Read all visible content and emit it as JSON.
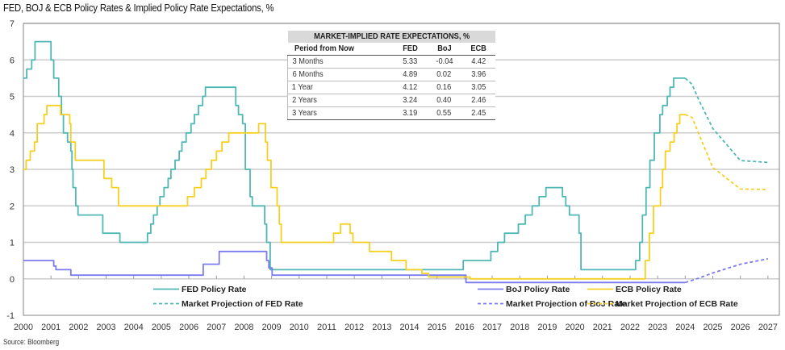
{
  "title": "FED, BOJ & ECB Policy Rates & Implied Policy Rate Expectations, %",
  "source": "Source: Bloomberg",
  "colors": {
    "fed": "#4fb8b4",
    "boj": "#7b7bf0",
    "ecb": "#f5d020",
    "grid": "#cccccc",
    "axis": "#999999",
    "table_header_bg": "#d9d9d9"
  },
  "table": {
    "title": "MARKET-IMPLIED RATE EXPECTATIONS, %",
    "columns": [
      "Period from Now",
      "FED",
      "BoJ",
      "ECB"
    ],
    "rows": [
      [
        "3 Months",
        "5.33",
        "-0.04",
        "4.42"
      ],
      [
        "6 Months",
        "4.89",
        "0.02",
        "3.96"
      ],
      [
        "1 Year",
        "4.12",
        "0.16",
        "3.05"
      ],
      [
        "2 Years",
        "3.24",
        "0.40",
        "2.46"
      ],
      [
        "3 Years",
        "3.19",
        "0.55",
        "2.45"
      ]
    ]
  },
  "chart_data": {
    "type": "line",
    "title": "FED, BOJ & ECB Policy Rates & Implied Policy Rate Expectations, %",
    "xlabel": "",
    "ylabel": "%",
    "xlim": [
      2000,
      2027.4
    ],
    "ylim": [
      -1,
      7
    ],
    "grid": true,
    "legend_position": "bottom-center",
    "x_ticks": [
      "2000",
      "2001",
      "2002",
      "2003",
      "2004",
      "2005",
      "2006",
      "2007",
      "2008",
      "2009",
      "2010",
      "2011",
      "2012",
      "2013",
      "2014",
      "2015",
      "2016",
      "2017",
      "2018",
      "2019",
      "2020",
      "2021",
      "2022",
      "2023",
      "2024",
      "2025",
      "2026",
      "2027"
    ],
    "y_ticks": [
      "-1",
      "0",
      "1",
      "2",
      "3",
      "4",
      "5",
      "6",
      "7"
    ],
    "series": [
      {
        "name": "FED Policy Rate",
        "key": "fed",
        "style": "step",
        "dash": false,
        "points": [
          [
            2000.0,
            5.5
          ],
          [
            2000.12,
            5.75
          ],
          [
            2000.3,
            6.0
          ],
          [
            2000.42,
            6.5
          ],
          [
            2001.0,
            6.0
          ],
          [
            2001.1,
            5.5
          ],
          [
            2001.28,
            5.0
          ],
          [
            2001.38,
            4.5
          ],
          [
            2001.45,
            4.0
          ],
          [
            2001.6,
            3.75
          ],
          [
            2001.72,
            3.5
          ],
          [
            2001.76,
            3.0
          ],
          [
            2001.8,
            2.5
          ],
          [
            2001.9,
            2.0
          ],
          [
            2001.98,
            1.75
          ],
          [
            2002.88,
            1.25
          ],
          [
            2003.5,
            1.0
          ],
          [
            2004.5,
            1.25
          ],
          [
            2004.62,
            1.5
          ],
          [
            2004.72,
            1.75
          ],
          [
            2004.85,
            2.0
          ],
          [
            2004.95,
            2.25
          ],
          [
            2005.1,
            2.5
          ],
          [
            2005.25,
            2.75
          ],
          [
            2005.35,
            3.0
          ],
          [
            2005.5,
            3.25
          ],
          [
            2005.65,
            3.5
          ],
          [
            2005.75,
            3.75
          ],
          [
            2005.9,
            4.0
          ],
          [
            2006.08,
            4.25
          ],
          [
            2006.2,
            4.5
          ],
          [
            2006.35,
            4.75
          ],
          [
            2006.5,
            5.0
          ],
          [
            2006.6,
            5.25
          ],
          [
            2007.7,
            4.75
          ],
          [
            2007.8,
            4.5
          ],
          [
            2007.95,
            4.25
          ],
          [
            2008.05,
            3.0
          ],
          [
            2008.22,
            2.25
          ],
          [
            2008.3,
            2.0
          ],
          [
            2008.75,
            1.5
          ],
          [
            2008.82,
            1.0
          ],
          [
            2008.95,
            0.25
          ],
          [
            2015.95,
            0.5
          ],
          [
            2016.95,
            0.75
          ],
          [
            2017.2,
            1.0
          ],
          [
            2017.45,
            1.25
          ],
          [
            2017.95,
            1.5
          ],
          [
            2018.2,
            1.75
          ],
          [
            2018.45,
            2.0
          ],
          [
            2018.7,
            2.25
          ],
          [
            2018.95,
            2.5
          ],
          [
            2019.55,
            2.25
          ],
          [
            2019.67,
            2.0
          ],
          [
            2019.8,
            1.75
          ],
          [
            2020.15,
            1.25
          ],
          [
            2020.22,
            0.25
          ],
          [
            2022.2,
            0.5
          ],
          [
            2022.35,
            1.0
          ],
          [
            2022.45,
            1.75
          ],
          [
            2022.58,
            2.5
          ],
          [
            2022.72,
            3.25
          ],
          [
            2022.88,
            4.0
          ],
          [
            2023.08,
            4.5
          ],
          [
            2023.18,
            4.75
          ],
          [
            2023.35,
            5.0
          ],
          [
            2023.45,
            5.25
          ],
          [
            2023.58,
            5.5
          ],
          [
            2024.0,
            5.5
          ]
        ]
      },
      {
        "name": "Market Projection of FED Rate",
        "key": "fed",
        "style": "linear",
        "dash": true,
        "points": [
          [
            2024.0,
            5.5
          ],
          [
            2024.25,
            5.33
          ],
          [
            2024.5,
            4.89
          ],
          [
            2025.0,
            4.12
          ],
          [
            2026.0,
            3.24
          ],
          [
            2027.0,
            3.19
          ]
        ]
      },
      {
        "name": "BoJ Policy Rate",
        "key": "boj",
        "style": "step",
        "dash": false,
        "points": [
          [
            2000.0,
            0.5
          ],
          [
            2001.1,
            0.35
          ],
          [
            2001.18,
            0.25
          ],
          [
            2001.72,
            0.1
          ],
          [
            2006.52,
            0.4
          ],
          [
            2007.1,
            0.75
          ],
          [
            2008.82,
            0.5
          ],
          [
            2008.9,
            0.3
          ],
          [
            2009.02,
            0.1
          ],
          [
            2016.05,
            -0.1
          ],
          [
            2024.0,
            -0.1
          ]
        ]
      },
      {
        "name": "Market Projection of BoJ Rate",
        "key": "boj",
        "style": "linear",
        "dash": true,
        "points": [
          [
            2024.0,
            -0.1
          ],
          [
            2024.25,
            -0.04
          ],
          [
            2024.5,
            0.02
          ],
          [
            2025.0,
            0.16
          ],
          [
            2026.0,
            0.4
          ],
          [
            2027.0,
            0.55
          ]
        ]
      },
      {
        "name": "ECB Policy Rate",
        "key": "ecb",
        "style": "step",
        "dash": false,
        "points": [
          [
            2000.0,
            3.0
          ],
          [
            2000.1,
            3.25
          ],
          [
            2000.25,
            3.5
          ],
          [
            2000.4,
            3.75
          ],
          [
            2000.5,
            4.25
          ],
          [
            2000.75,
            4.5
          ],
          [
            2000.85,
            4.75
          ],
          [
            2001.35,
            4.5
          ],
          [
            2001.68,
            4.25
          ],
          [
            2001.72,
            3.75
          ],
          [
            2001.88,
            3.25
          ],
          [
            2002.92,
            2.75
          ],
          [
            2003.2,
            2.5
          ],
          [
            2003.45,
            2.0
          ],
          [
            2005.95,
            2.25
          ],
          [
            2006.2,
            2.5
          ],
          [
            2006.45,
            2.75
          ],
          [
            2006.62,
            3.0
          ],
          [
            2006.82,
            3.25
          ],
          [
            2007.0,
            3.5
          ],
          [
            2007.2,
            3.75
          ],
          [
            2007.45,
            4.0
          ],
          [
            2008.53,
            4.25
          ],
          [
            2008.78,
            3.75
          ],
          [
            2008.85,
            3.25
          ],
          [
            2008.98,
            2.5
          ],
          [
            2009.2,
            2.0
          ],
          [
            2009.28,
            1.5
          ],
          [
            2009.35,
            1.0
          ],
          [
            2011.25,
            1.25
          ],
          [
            2011.5,
            1.5
          ],
          [
            2011.85,
            1.25
          ],
          [
            2011.95,
            1.0
          ],
          [
            2012.55,
            0.75
          ],
          [
            2013.35,
            0.5
          ],
          [
            2013.88,
            0.25
          ],
          [
            2014.45,
            0.15
          ],
          [
            2014.7,
            0.05
          ],
          [
            2016.2,
            0.0
          ],
          [
            2022.55,
            0.5
          ],
          [
            2022.7,
            1.25
          ],
          [
            2022.85,
            2.0
          ],
          [
            2023.1,
            2.5
          ],
          [
            2023.18,
            3.0
          ],
          [
            2023.28,
            3.5
          ],
          [
            2023.45,
            3.75
          ],
          [
            2023.6,
            4.0
          ],
          [
            2023.7,
            4.25
          ],
          [
            2023.8,
            4.5
          ],
          [
            2024.0,
            4.5
          ]
        ]
      },
      {
        "name": "Market Projection of ECB Rate",
        "key": "ecb",
        "style": "linear",
        "dash": true,
        "points": [
          [
            2024.0,
            4.5
          ],
          [
            2024.25,
            4.42
          ],
          [
            2024.5,
            3.96
          ],
          [
            2025.0,
            3.05
          ],
          [
            2026.0,
            2.46
          ],
          [
            2027.0,
            2.45
          ]
        ]
      }
    ],
    "legend": [
      {
        "label": "FED Policy Rate",
        "key": "fed",
        "dash": false
      },
      {
        "label": "BoJ Policy Rate",
        "key": "boj",
        "dash": false
      },
      {
        "label": "ECB Policy Rate",
        "key": "ecb",
        "dash": false
      },
      {
        "label": "Market Projection of FED Rate",
        "key": "fed",
        "dash": true
      },
      {
        "label": "Market Projection of BoJ Rate",
        "key": "boj",
        "dash": true
      },
      {
        "label": "Market Projection of ECB Rate",
        "key": "ecb",
        "dash": true
      }
    ]
  }
}
